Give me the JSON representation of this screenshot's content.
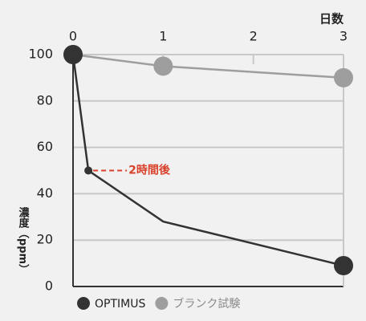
{
  "chart_data": {
    "type": "line",
    "xlabel": "日数",
    "ylabel": "濃度（ppm）",
    "xlim": [
      0,
      3
    ],
    "xticks": [
      0,
      1,
      2,
      3
    ],
    "ylim": [
      0,
      100
    ],
    "yticks": [
      0,
      20,
      40,
      60,
      80,
      100
    ],
    "grid": true,
    "legend": "bottom",
    "series": [
      {
        "name": "OPTIMUS",
        "color": "#333333",
        "x": [
          0,
          0.17,
          1,
          3
        ],
        "values": [
          100,
          50,
          28,
          9
        ]
      },
      {
        "name": "ブランク試験",
        "color": "#9e9e9e",
        "x": [
          0,
          1,
          3
        ],
        "values": [
          100,
          95,
          90
        ]
      }
    ],
    "annotation": {
      "text": "2時間後",
      "color": "#d9412b"
    }
  }
}
